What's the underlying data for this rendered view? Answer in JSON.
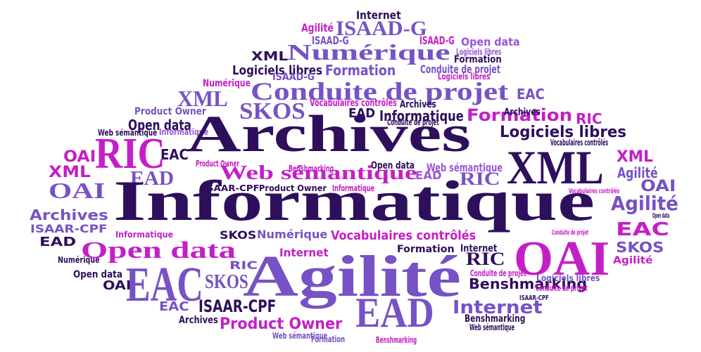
{
  "colors": {
    "dark": "#2e0f5c",
    "purple": "#7652c6",
    "magenta": "#c41fc7",
    "violet": "#9a56d6",
    "background": "#ffffff"
  },
  "words": [
    {
      "text": "Internet",
      "color": "dark"
    },
    {
      "text": "Agilité",
      "color": "magenta"
    },
    {
      "text": "ISAAD-G",
      "color": "purple"
    },
    {
      "text": "ISAAD-G",
      "color": "purple"
    },
    {
      "text": "ISAAD-G",
      "color": "magenta"
    },
    {
      "text": "Open data",
      "color": "violet"
    },
    {
      "text": "Numérique",
      "color": "purple"
    },
    {
      "text": "Logiciels libres",
      "color": "violet"
    },
    {
      "text": "XML",
      "color": "dark"
    },
    {
      "text": "Formation",
      "color": "dark"
    },
    {
      "text": "Logiciels libres",
      "color": "dark"
    },
    {
      "text": "Formation",
      "color": "purple"
    },
    {
      "text": "Conduite de projet",
      "color": "purple"
    },
    {
      "text": "Logiciels libres",
      "color": "magenta"
    },
    {
      "text": "ISAAD-G",
      "color": "purple"
    },
    {
      "text": "Numérique",
      "color": "magenta"
    },
    {
      "text": "Conduite de projet",
      "color": "purple"
    },
    {
      "text": "XML",
      "color": "purple"
    },
    {
      "text": "EAC",
      "color": "purple"
    },
    {
      "text": "Vocabulaires contrôlés",
      "color": "magenta"
    },
    {
      "text": "Archives",
      "color": "dark"
    },
    {
      "text": "SKOS",
      "color": "purple"
    },
    {
      "text": "Product Owner",
      "color": "purple"
    },
    {
      "text": "EAD",
      "color": "dark"
    },
    {
      "text": "Informatique",
      "color": "dark"
    },
    {
      "text": "Formation",
      "color": "magenta"
    },
    {
      "text": "RIC",
      "color": "magenta"
    },
    {
      "text": "Archives",
      "color": "dark"
    },
    {
      "text": "Open data",
      "color": "dark"
    },
    {
      "text": "Informatique",
      "color": "violet"
    },
    {
      "text": "Conduite de projet",
      "color": "dark"
    },
    {
      "text": "Archives",
      "color": "dark"
    },
    {
      "text": "Web sémantique",
      "color": "dark"
    },
    {
      "text": "Logiciels libres",
      "color": "dark"
    },
    {
      "text": "Vocabulaires contrôlés",
      "color": "dark"
    },
    {
      "text": "RIC",
      "color": "magenta"
    },
    {
      "text": "EAC",
      "color": "dark"
    },
    {
      "text": "OAI",
      "color": "magenta"
    },
    {
      "text": "Product Owner",
      "color": "magenta"
    },
    {
      "text": "Open data",
      "color": "dark"
    },
    {
      "text": "EAD",
      "color": "violet"
    },
    {
      "text": "XML",
      "color": "dark"
    },
    {
      "text": "XML",
      "color": "magenta"
    },
    {
      "text": "Benshmarking",
      "color": "magenta"
    },
    {
      "text": "Web sémantique",
      "color": "violet"
    },
    {
      "text": "Web sémantique",
      "color": "magenta"
    },
    {
      "text": "Agilité",
      "color": "purple"
    },
    {
      "text": "XML",
      "color": "magenta"
    },
    {
      "text": "EAD",
      "color": "purple"
    },
    {
      "text": "RIC",
      "color": "purple"
    },
    {
      "text": "OAI",
      "color": "purple"
    },
    {
      "text": "Informatique",
      "color": "magenta"
    },
    {
      "text": "OAI",
      "color": "purple"
    },
    {
      "text": "Informatique",
      "color": "dark"
    },
    {
      "text": "ISAAR-CPF",
      "color": "dark"
    },
    {
      "text": "Product Owner",
      "color": "dark"
    },
    {
      "text": "Vocabulaires contrôlés",
      "color": "magenta"
    },
    {
      "text": "Agilité",
      "color": "purple"
    },
    {
      "text": "Open data",
      "color": "dark"
    },
    {
      "text": "Archives",
      "color": "purple"
    },
    {
      "text": "Informatique",
      "color": "magenta"
    },
    {
      "text": "ISAAR-CPF",
      "color": "purple"
    },
    {
      "text": "EAC",
      "color": "magenta"
    },
    {
      "text": "SKOS",
      "color": "dark"
    },
    {
      "text": "Numérique",
      "color": "purple"
    },
    {
      "text": "Vocabulaires contrôlés",
      "color": "magenta"
    },
    {
      "text": "Conduite de projet",
      "color": "magenta"
    },
    {
      "text": "EAD",
      "color": "dark"
    },
    {
      "text": "Open data",
      "color": "magenta"
    },
    {
      "text": "Internet",
      "color": "magenta"
    },
    {
      "text": "Formation",
      "color": "dark"
    },
    {
      "text": "Internet",
      "color": "dark"
    },
    {
      "text": "OAI",
      "color": "magenta"
    },
    {
      "text": "SKOS",
      "color": "purple"
    },
    {
      "text": "Numérique",
      "color": "dark"
    },
    {
      "text": "Open data",
      "color": "dark"
    },
    {
      "text": "RIC",
      "color": "purple"
    },
    {
      "text": "RIC",
      "color": "dark"
    },
    {
      "text": "Conduite de projet",
      "color": "magenta"
    },
    {
      "text": "Agilité",
      "color": "magenta"
    },
    {
      "text": "OAI",
      "color": "dark"
    },
    {
      "text": "EAC",
      "color": "purple"
    },
    {
      "text": "SKOS",
      "color": "purple"
    },
    {
      "text": "Agilité",
      "color": "purple"
    },
    {
      "text": "Benshmarking",
      "color": "dark"
    },
    {
      "text": "Logiciels libres",
      "color": "purple"
    },
    {
      "text": "Conduite de projet",
      "color": "magenta"
    },
    {
      "text": "ISAAR-CPF",
      "color": "dark"
    },
    {
      "text": "EAC",
      "color": "purple"
    },
    {
      "text": "ISAAR-CPF",
      "color": "dark"
    },
    {
      "text": "EAD",
      "color": "purple"
    },
    {
      "text": "Internet",
      "color": "purple"
    },
    {
      "text": "Archives",
      "color": "dark"
    },
    {
      "text": "Product Owner",
      "color": "magenta"
    },
    {
      "text": "Benshmarking",
      "color": "dark"
    },
    {
      "text": "Web sémantique",
      "color": "purple"
    },
    {
      "text": "Web sémantique",
      "color": "dark"
    },
    {
      "text": "Formation",
      "color": "purple"
    },
    {
      "text": "Benshmarking",
      "color": "magenta"
    }
  ]
}
